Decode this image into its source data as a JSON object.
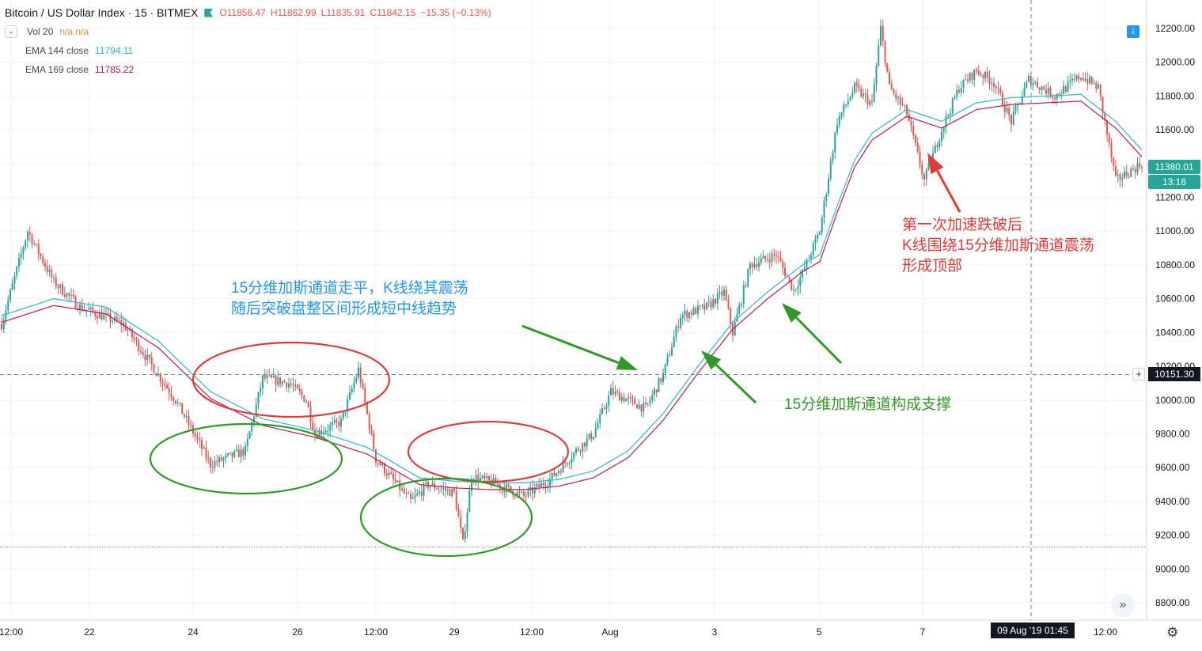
{
  "header": {
    "symbol": "Bitcoin / US Dollar Index · 15 · BITMEX",
    "ohlc": {
      "o": "O11856.47",
      "h": "H11862.99",
      "l": "L11835.91",
      "c": "C11842.15",
      "chg": "−15.35 (−0.13%)"
    }
  },
  "indicators": {
    "vol": {
      "label": "Vol 20",
      "value": "n/a n/a"
    },
    "ema144": {
      "label": "EMA 144 close",
      "value": "11794.11"
    },
    "ema169": {
      "label": "EMA 169 close",
      "value": "11785.22"
    }
  },
  "colors": {
    "up": "#26a69a",
    "down": "#ef5350",
    "ema144": "#2bb8d6",
    "ema169": "#c2185b",
    "ellipse_red": "#e53935",
    "ellipse_green": "#2e9b25",
    "arrow_green": "#2e9b25",
    "arrow_red": "#e53935"
  },
  "annotations": {
    "blue": [
      "15分维加斯通道走平，K线绕其震荡",
      "随后突破盘整区间形成短中线趋势"
    ],
    "green": "15分维加斯通道构成支撑",
    "red": [
      "第一次加速跌破后",
      "K线围绕15分维加斯通道震荡",
      "形成顶部"
    ]
  },
  "price_badges": {
    "last": "11380.01",
    "countdown": "13:16",
    "crosshair": "10151.30"
  },
  "time_badge": "09 Aug '19   01:45",
  "chart_data": {
    "type": "candlestick",
    "title": "Bitcoin / US Dollar Index · 15 · BITMEX",
    "ylim": [
      8700,
      12350
    ],
    "y_ticks": [
      8800,
      9000,
      9200,
      9400,
      9600,
      9800,
      10000,
      10200,
      10400,
      10600,
      10800,
      11000,
      11200,
      11400,
      11600,
      11800,
      12000,
      12200
    ],
    "x_ticks": [
      "12:00",
      "22",
      "24",
      "26",
      "12:00",
      "29",
      "12:00",
      "Aug",
      "3",
      "5",
      "7",
      "09 Aug '19",
      "12:00"
    ],
    "crosshair_price": 10151.3,
    "support_level": 9130,
    "price_path": [
      [
        0,
        10450
      ],
      [
        3,
        11000
      ],
      [
        6,
        10700
      ],
      [
        9,
        10550
      ],
      [
        14,
        10450
      ],
      [
        20,
        10000
      ],
      [
        24,
        9620
      ],
      [
        28,
        9700
      ],
      [
        30,
        10130
      ],
      [
        33,
        10100
      ],
      [
        35,
        10000
      ],
      [
        36,
        9800
      ],
      [
        39,
        9870
      ],
      [
        41,
        10180
      ],
      [
        43,
        9650
      ],
      [
        47,
        9400
      ],
      [
        49,
        9500
      ],
      [
        52,
        9450
      ],
      [
        53,
        9150
      ],
      [
        54,
        9550
      ],
      [
        57,
        9500
      ],
      [
        60,
        9430
      ],
      [
        63,
        9530
      ],
      [
        66,
        9700
      ],
      [
        68,
        9800
      ],
      [
        70,
        10050
      ],
      [
        74,
        9950
      ],
      [
        76,
        10150
      ],
      [
        78,
        10500
      ],
      [
        81,
        10550
      ],
      [
        83,
        10640
      ],
      [
        84,
        10400
      ],
      [
        86,
        10800
      ],
      [
        89,
        10860
      ],
      [
        91,
        10650
      ],
      [
        92,
        10750
      ],
      [
        94,
        11000
      ],
      [
        96,
        11650
      ],
      [
        98,
        11850
      ],
      [
        100,
        11750
      ],
      [
        101,
        12200
      ],
      [
        102,
        11850
      ],
      [
        104,
        11700
      ],
      [
        106,
        11300
      ],
      [
        108,
        11600
      ],
      [
        110,
        11850
      ],
      [
        112,
        11950
      ],
      [
        114,
        11880
      ],
      [
        116,
        11650
      ],
      [
        118,
        11900
      ],
      [
        121,
        11800
      ],
      [
        124,
        11920
      ],
      [
        126,
        11850
      ],
      [
        128,
        11300
      ],
      [
        131,
        11400
      ]
    ],
    "ema144_path": [
      [
        0,
        10500
      ],
      [
        6,
        10600
      ],
      [
        12,
        10550
      ],
      [
        18,
        10350
      ],
      [
        24,
        10050
      ],
      [
        30,
        9890
      ],
      [
        36,
        9820
      ],
      [
        42,
        9720
      ],
      [
        45,
        9630
      ],
      [
        48,
        9540
      ],
      [
        52,
        9520
      ],
      [
        56,
        9510
      ],
      [
        60,
        9510
      ],
      [
        64,
        9530
      ],
      [
        68,
        9580
      ],
      [
        72,
        9700
      ],
      [
        76,
        9920
      ],
      [
        80,
        10200
      ],
      [
        84,
        10460
      ],
      [
        88,
        10640
      ],
      [
        92,
        10800
      ],
      [
        94,
        10860
      ],
      [
        96,
        11150
      ],
      [
        98,
        11420
      ],
      [
        100,
        11580
      ],
      [
        104,
        11720
      ],
      [
        108,
        11650
      ],
      [
        112,
        11760
      ],
      [
        116,
        11790
      ],
      [
        120,
        11800
      ],
      [
        124,
        11810
      ],
      [
        128,
        11650
      ],
      [
        131,
        11480
      ]
    ],
    "ema169_offset": -40,
    "series": [
      {
        "name": "EMA 144 close",
        "last": 11794.11
      },
      {
        "name": "EMA 169 close",
        "last": 11785.22
      }
    ]
  }
}
